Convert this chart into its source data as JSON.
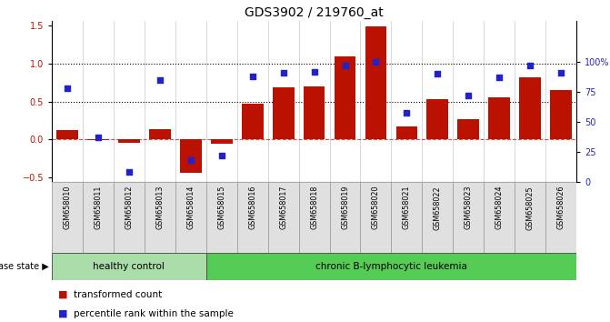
{
  "title": "GDS3902 / 219760_at",
  "samples": [
    "GSM658010",
    "GSM658011",
    "GSM658012",
    "GSM658013",
    "GSM658014",
    "GSM658015",
    "GSM658016",
    "GSM658017",
    "GSM658018",
    "GSM658019",
    "GSM658020",
    "GSM658021",
    "GSM658022",
    "GSM658023",
    "GSM658024",
    "GSM658025",
    "GSM658026"
  ],
  "bar_values": [
    0.12,
    -0.01,
    -0.05,
    0.14,
    -0.44,
    -0.06,
    0.47,
    0.69,
    0.7,
    1.09,
    1.49,
    0.17,
    0.53,
    0.27,
    0.55,
    0.82,
    0.65
  ],
  "dot_values": [
    78,
    37,
    8,
    85,
    18,
    22,
    88,
    91,
    92,
    97,
    100,
    58,
    90,
    72,
    87,
    97,
    91
  ],
  "bar_color": "#bb1100",
  "dot_color": "#2222cc",
  "ylim_left": [
    -0.56,
    1.56
  ],
  "ylim_right": [
    0,
    134.4
  ],
  "yticks_left": [
    -0.5,
    0.0,
    0.5,
    1.0,
    1.5
  ],
  "yticks_right": [
    0,
    25,
    50,
    75,
    100
  ],
  "ytick_labels_right": [
    "0",
    "25",
    "50",
    "75",
    "100%"
  ],
  "healthy_control_indices": [
    0,
    1,
    2,
    3,
    4
  ],
  "leukemia_indices": [
    5,
    6,
    7,
    8,
    9,
    10,
    11,
    12,
    13,
    14,
    15,
    16
  ],
  "healthy_label": "healthy control",
  "leukemia_label": "chronic B-lymphocytic leukemia",
  "disease_state_label": "disease state",
  "legend_bar_label": "transformed count",
  "legend_dot_label": "percentile rank within the sample",
  "bar_width": 0.7,
  "healthy_color": "#aaddaa",
  "leukemia_color": "#55cc55",
  "sample_box_color": "#dddddd",
  "title_fontsize": 10,
  "tick_fontsize": 7,
  "label_fontsize": 7.5
}
